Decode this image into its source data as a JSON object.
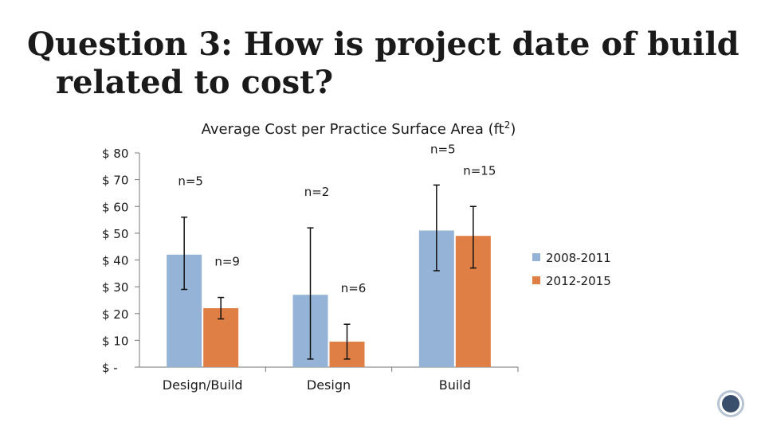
{
  "slide": {
    "title_line1": "Question 3: How is project date of build",
    "title_line2": "related to cost?"
  },
  "chart_data": {
    "type": "bar",
    "title": "Average Cost per Practice Surface Area (ft²)",
    "title_main": "Average Cost per Practice Surface Area (ft",
    "title_sup": "2",
    "title_end": ")",
    "categories": [
      "Design/Build",
      "Design",
      "Build"
    ],
    "series": [
      {
        "name": "2008-2011",
        "color": "#95b3d7",
        "values": [
          42,
          27,
          51
        ],
        "error_low": [
          29,
          3,
          36
        ],
        "error_high": [
          56,
          52,
          68
        ],
        "n_labels": [
          "n=5",
          "n=2",
          "n=5"
        ]
      },
      {
        "name": "2012-2015",
        "color": "#e07f45",
        "values": [
          22,
          9.5,
          49
        ],
        "error_low": [
          18,
          3,
          37
        ],
        "error_high": [
          26,
          16,
          60
        ],
        "n_labels": [
          "n=9",
          "n=6",
          "n=15"
        ]
      }
    ],
    "y_ticks": [
      {
        "value": 80,
        "label": "$ 80"
      },
      {
        "value": 70,
        "label": "$ 70"
      },
      {
        "value": 60,
        "label": "$ 60"
      },
      {
        "value": 50,
        "label": "$ 50"
      },
      {
        "value": 40,
        "label": "$ 40"
      },
      {
        "value": 30,
        "label": "$ 30"
      },
      {
        "value": 20,
        "label": "$ 20"
      },
      {
        "value": 10,
        "label": "$ 10"
      },
      {
        "value": 0,
        "label": "$ -"
      }
    ],
    "ylim": [
      0,
      80
    ],
    "grid": false,
    "legend_position": "right"
  }
}
